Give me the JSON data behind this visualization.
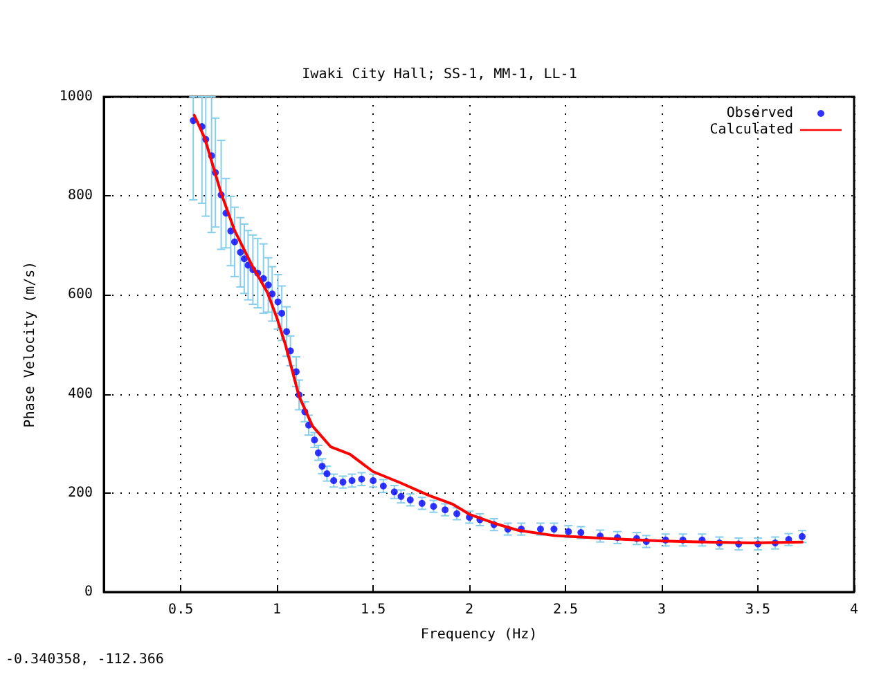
{
  "chart_data": {
    "type": "scatter",
    "title": "Iwaki City Hall; SS-1, MM-1, LL-1",
    "xlabel": "Frequency (Hz)",
    "ylabel": "Phase Velocity (m/s)",
    "annotations": [
      "-0.340358, -112.366"
    ],
    "xlim": [
      0.1,
      4
    ],
    "xticks": [
      0.5,
      1,
      1.5,
      2,
      2.5,
      3,
      3.5,
      4
    ],
    "ylim": [
      0,
      1000
    ],
    "yticks": [
      0,
      200,
      400,
      600,
      800,
      1000
    ],
    "grid": true,
    "legend": "top right",
    "series": [
      {
        "name": "Observed",
        "marker": "circle",
        "color": "#0000ff",
        "x": [
          0.565,
          0.61,
          0.63,
          0.66,
          0.68,
          0.71,
          0.735,
          0.76,
          0.78,
          0.81,
          0.83,
          0.85,
          0.875,
          0.9,
          0.93,
          0.955,
          0.975,
          1.005,
          1.025,
          1.05,
          1.07,
          1.1,
          1.115,
          1.145,
          1.165,
          1.195,
          1.215,
          1.235,
          1.26,
          1.295,
          1.343,
          1.39,
          1.44,
          1.5,
          1.553,
          1.61,
          1.645,
          1.693,
          1.754,
          1.814,
          1.874,
          1.935,
          2.0,
          2.055,
          2.128,
          2.2,
          2.27,
          2.37,
          2.44,
          2.515,
          2.58,
          2.68,
          2.77,
          2.87,
          2.92,
          3.02,
          3.11,
          3.21,
          3.3,
          3.4,
          3.5,
          3.59,
          3.66,
          3.73
        ],
        "values": [
          952,
          940,
          914,
          881,
          847,
          802,
          765,
          729,
          707,
          686,
          673,
          660,
          651,
          644,
          633,
          620,
          602,
          586,
          563,
          526,
          487,
          445,
          398,
          364,
          337,
          307,
          281,
          254,
          239,
          225,
          222,
          225,
          228,
          225,
          214,
          202,
          193,
          186,
          179,
          173,
          166,
          158,
          151,
          146,
          136,
          127,
          127,
          127,
          127,
          122,
          120,
          113,
          110,
          108,
          102,
          105,
          105,
          105,
          99,
          97,
          97,
          99,
          106,
          112
        ],
        "errors": [
          [
            792,
            1000
          ],
          [
            785,
            1000
          ],
          [
            759,
            1000
          ],
          [
            726,
            1000
          ],
          [
            737,
            957
          ],
          [
            692,
            912
          ],
          [
            695,
            835
          ],
          [
            659,
            799
          ],
          [
            637,
            777
          ],
          [
            616,
            756
          ],
          [
            603,
            743
          ],
          [
            590,
            730
          ],
          [
            581,
            721
          ],
          [
            574,
            714
          ],
          [
            563,
            703
          ],
          [
            565,
            675
          ],
          [
            547,
            657
          ],
          [
            531,
            641
          ],
          [
            508,
            618
          ],
          [
            476,
            576
          ],
          [
            457,
            517
          ],
          [
            415,
            475
          ],
          [
            368,
            428
          ],
          [
            344,
            384
          ],
          [
            317,
            357
          ],
          [
            292,
            322
          ],
          [
            266,
            296
          ],
          [
            239,
            269
          ],
          [
            224,
            254
          ],
          [
            212,
            238
          ],
          [
            210,
            234
          ],
          [
            212,
            238
          ],
          [
            215,
            241
          ],
          [
            212,
            238
          ],
          [
            201,
            227
          ],
          [
            189,
            215
          ],
          [
            180,
            206
          ],
          [
            174,
            198
          ],
          [
            167,
            191
          ],
          [
            161,
            185
          ],
          [
            154,
            178
          ],
          [
            146,
            170
          ],
          [
            139,
            163
          ],
          [
            134,
            158
          ],
          [
            124,
            148
          ],
          [
            115,
            139
          ],
          [
            115,
            139
          ],
          [
            115,
            139
          ],
          [
            115,
            139
          ],
          [
            110,
            134
          ],
          [
            108,
            132
          ],
          [
            101,
            125
          ],
          [
            98,
            122
          ],
          [
            96,
            120
          ],
          [
            90,
            114
          ],
          [
            93,
            117
          ],
          [
            93,
            117
          ],
          [
            93,
            117
          ],
          [
            87,
            111
          ],
          [
            85,
            109
          ],
          [
            85,
            109
          ],
          [
            87,
            111
          ],
          [
            94,
            118
          ],
          [
            100,
            124
          ]
        ]
      },
      {
        "name": "Calculated",
        "type": "line",
        "marker": "none",
        "line_style": "solid",
        "color": "#ff0000",
        "x": [
          0.57,
          0.625,
          0.71,
          0.78,
          0.875,
          0.95,
          1.0,
          1.045,
          1.115,
          1.185,
          1.28,
          1.38,
          1.5,
          1.645,
          1.79,
          1.91,
          2.0,
          2.128,
          2.25,
          2.44,
          2.72,
          3.0,
          3.23,
          3.47,
          3.73
        ],
        "values": [
          963,
          916,
          805,
          730,
          656,
          605,
          553,
          498,
          395,
          335,
          293,
          278,
          243,
          220,
          195,
          178,
          157,
          139,
          125,
          114,
          108,
          103,
          101,
          99,
          101
        ]
      }
    ]
  }
}
